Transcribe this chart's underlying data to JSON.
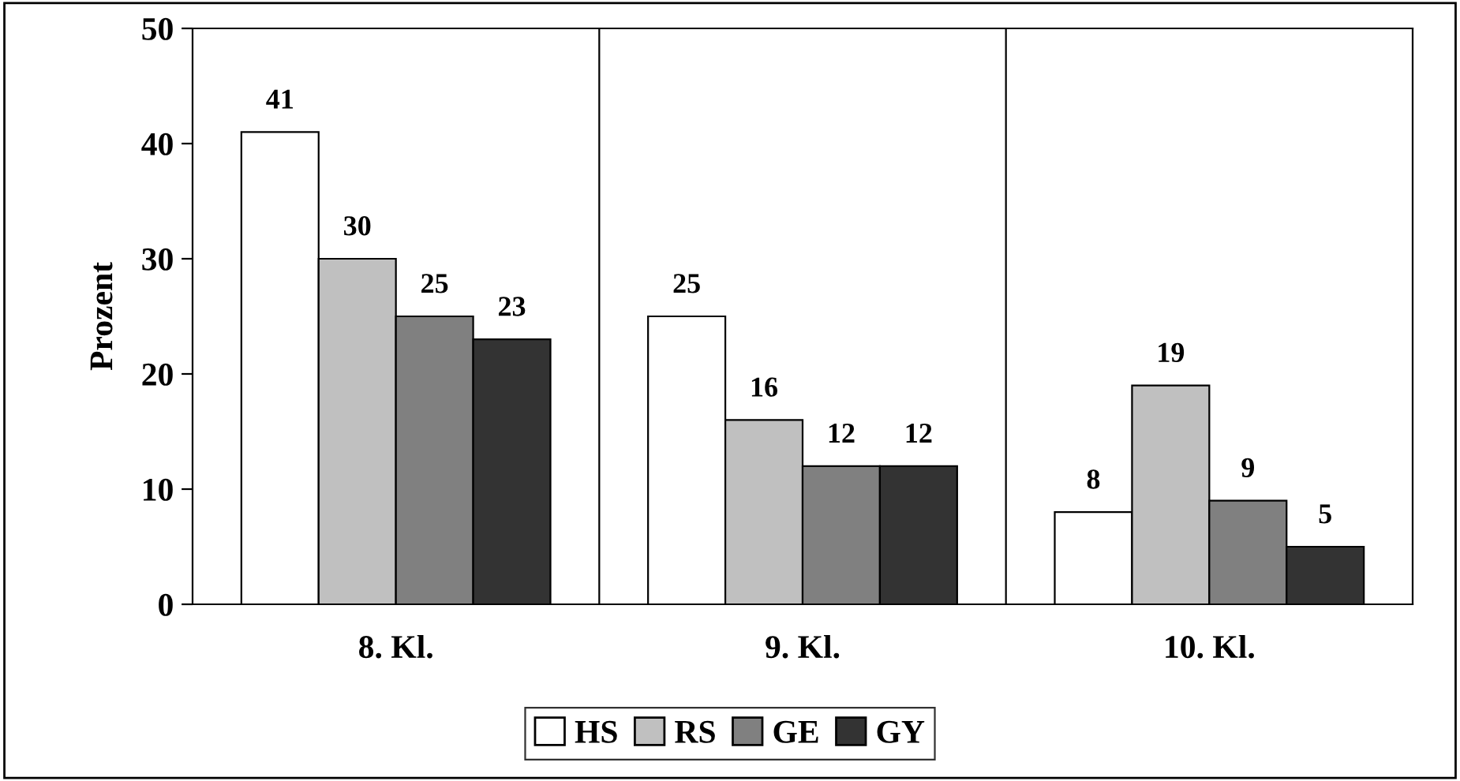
{
  "chart_data": {
    "type": "bar",
    "ylabel": "Prozent",
    "categories": [
      "8. Kl.",
      "9. Kl.",
      "10. Kl."
    ],
    "series": [
      {
        "name": "HS",
        "color": "#ffffff",
        "values": [
          41,
          25,
          8
        ]
      },
      {
        "name": "RS",
        "color": "#c0c0c0",
        "values": [
          30,
          16,
          19
        ]
      },
      {
        "name": "GE",
        "color": "#808080",
        "values": [
          25,
          12,
          9
        ]
      },
      {
        "name": "GY",
        "color": "#333333",
        "values": [
          23,
          12,
          5
        ]
      }
    ],
    "ylim": [
      0,
      50
    ],
    "yticks": [
      0,
      10,
      20,
      30,
      40,
      50
    ],
    "grid": "x",
    "legend": "bottom",
    "data_labels": true
  }
}
